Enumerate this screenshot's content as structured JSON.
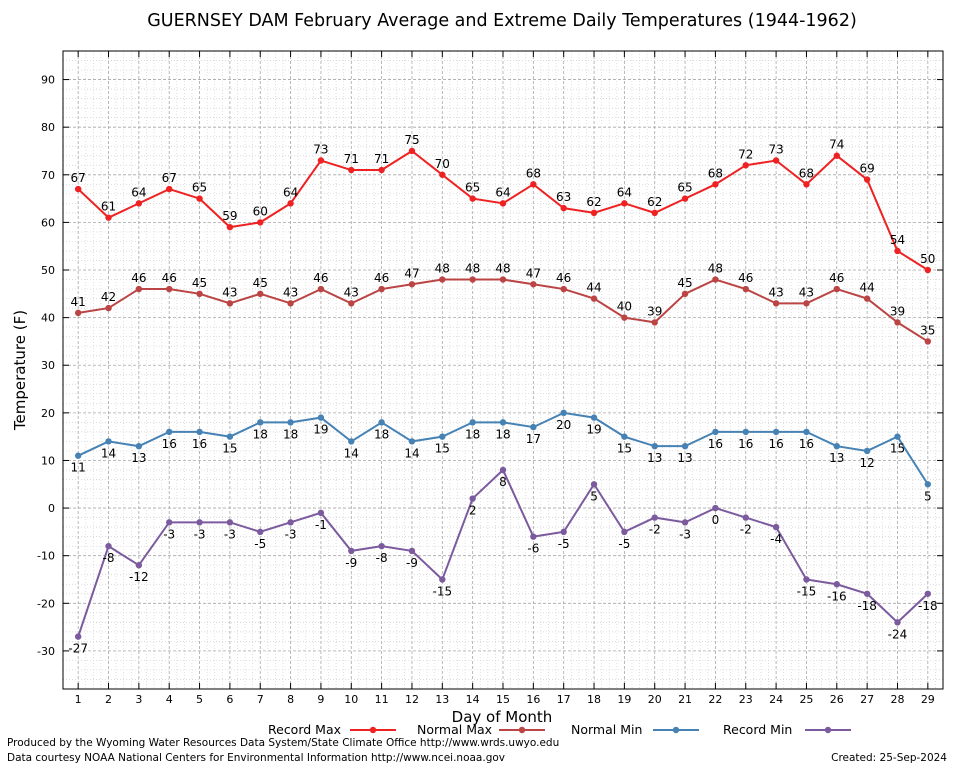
{
  "chart_data": {
    "type": "line",
    "title": "GUERNSEY DAM February Average and Extreme Daily Temperatures (1944-1962)",
    "xlabel": "Day of Month",
    "ylabel": "Temperature (F)",
    "x": [
      1,
      2,
      3,
      4,
      5,
      6,
      7,
      8,
      9,
      10,
      11,
      12,
      13,
      14,
      15,
      16,
      17,
      18,
      19,
      20,
      21,
      22,
      23,
      24,
      25,
      26,
      27,
      28,
      29
    ],
    "xlim": [
      0.5,
      29.5
    ],
    "ylim": [
      -38,
      96
    ],
    "y_ticks": [
      -30,
      -20,
      -10,
      0,
      10,
      20,
      30,
      40,
      50,
      60,
      70,
      80,
      90
    ],
    "grid": true,
    "legend_position": "bottom",
    "series": [
      {
        "name": "Record Max",
        "color": "#ee2222",
        "values": [
          67,
          61,
          64,
          67,
          65,
          59,
          60,
          64,
          73,
          71,
          71,
          75,
          70,
          65,
          64,
          68,
          63,
          62,
          64,
          62,
          65,
          68,
          72,
          73,
          68,
          74,
          69,
          54,
          50
        ]
      },
      {
        "name": "Normal Max",
        "color": "#bb4444",
        "values": [
          41,
          42,
          46,
          46,
          45,
          43,
          45,
          43,
          46,
          43,
          46,
          47,
          48,
          48,
          48,
          47,
          46,
          44,
          40,
          39,
          45,
          48,
          46,
          43,
          43,
          46,
          44,
          39,
          35
        ]
      },
      {
        "name": "Normal Min",
        "color": "#4682b4",
        "values": [
          11,
          14,
          13,
          16,
          16,
          15,
          18,
          18,
          19,
          14,
          18,
          14,
          15,
          18,
          18,
          17,
          20,
          19,
          15,
          13,
          13,
          16,
          16,
          16,
          16,
          13,
          12,
          15,
          5
        ]
      },
      {
        "name": "Record Min",
        "color": "#7b5a9e",
        "values": [
          -27,
          -8,
          -12,
          -3,
          -3,
          -3,
          -5,
          -3,
          -1,
          -9,
          -8,
          -9,
          -15,
          2,
          8,
          -6,
          -5,
          5,
          -5,
          -2,
          -3,
          0,
          -2,
          -4,
          -15,
          -16,
          -18,
          -24,
          -18
        ]
      }
    ]
  },
  "footer": {
    "produced_by": "Produced by the Wyoming Water Resources Data System/State Climate Office http://www.wrds.uwyo.edu",
    "data_courtesy": "Data courtesy NOAA National Centers for Environmental Information http://www.ncei.noaa.gov",
    "created": "Created:  25-Sep-2024"
  }
}
